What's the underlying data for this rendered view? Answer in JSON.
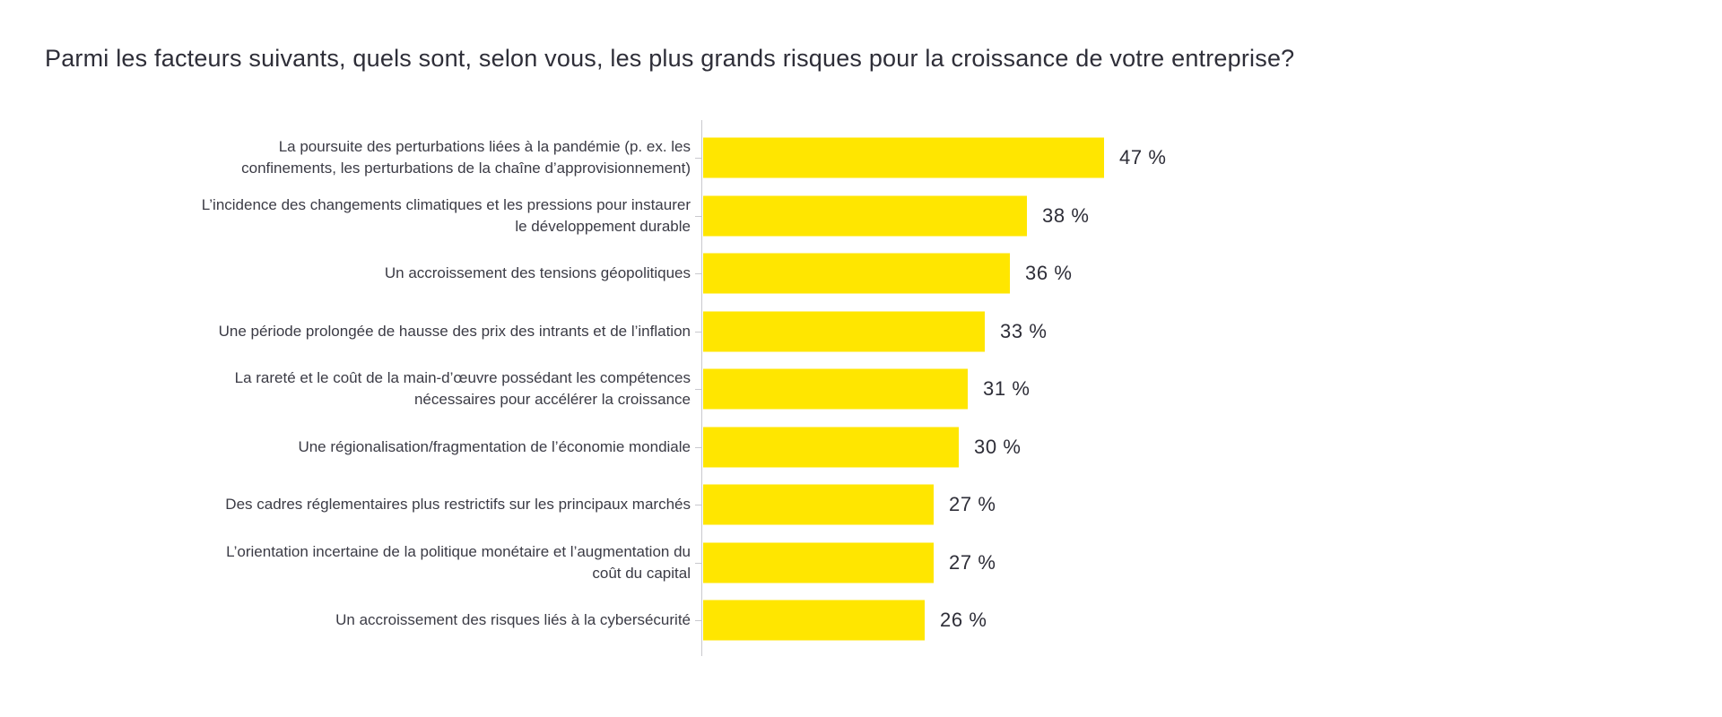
{
  "chart_data": {
    "type": "bar",
    "orientation": "horizontal",
    "title": "Parmi les facteurs suivants, quels sont, selon vous, les plus grands risques pour la croissance de votre entreprise?",
    "categories": [
      "La poursuite des perturbations liées à la pandémie (p. ex. les\nconfinements, les perturbations de la chaîne d’approvisionnement)",
      "L’incidence des changements climatiques et les pressions pour instaurer\nle développement durable",
      "Un accroissement des tensions géopolitiques",
      "Une période prolongée de hausse des prix des intrants et de l’inflation",
      "La rareté et le coût de la main-d’œuvre possédant les compétences\nnécessaires pour accélérer la croissance",
      "Une régionalisation/fragmentation de l’économie mondiale",
      "Des cadres réglementaires plus restrictifs sur les principaux marchés",
      "L’orientation incertaine de la politique monétaire et l’augmentation du\ncoût du capital",
      "Un accroissement des risques liés à la cybersécurité"
    ],
    "values": [
      47,
      38,
      36,
      33,
      31,
      30,
      27,
      27,
      26
    ],
    "value_labels": [
      "47 %",
      "38 %",
      "36 %",
      "33 %",
      "31 %",
      "30 %",
      "27 %",
      "27 %",
      "26 %"
    ],
    "value_suffix": " %",
    "xlabel": "",
    "ylabel": "",
    "xlim": [
      0,
      100
    ],
    "grid": false,
    "legend": false,
    "colors": {
      "bar": "#FFE600",
      "axis": "#C9C9CE",
      "title_text": "#2E2E38",
      "label_text": "#3B3B45",
      "value_text": "#2E2E38",
      "background": "#FFFFFF"
    }
  }
}
